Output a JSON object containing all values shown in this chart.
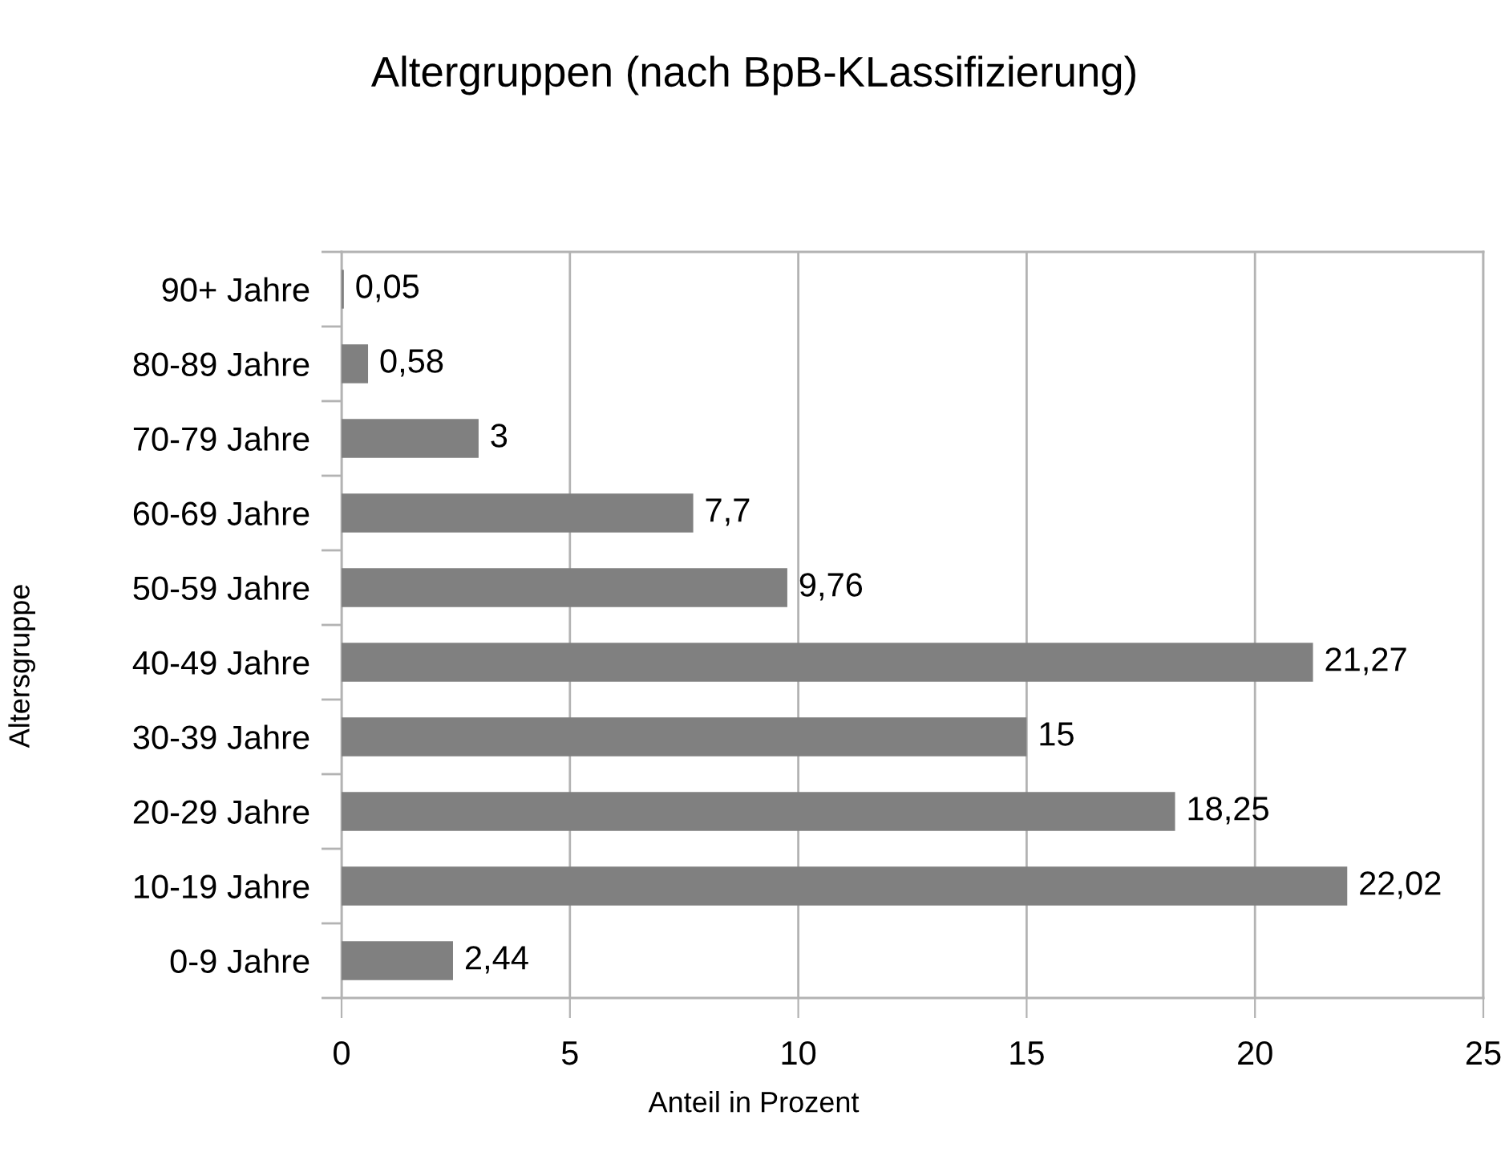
{
  "chart_data": {
    "type": "bar",
    "orientation": "horizontal",
    "title": "Altergruppen (nach BpB-KLassifizierung)",
    "xlabel": "Anteil in Prozent",
    "ylabel": "Altersgruppe",
    "categories": [
      "90+ Jahre",
      "80-89 Jahre",
      "70-79 Jahre",
      "60-69 Jahre",
      "50-59 Jahre",
      "40-49 Jahre",
      "30-39 Jahre",
      "20-29 Jahre",
      "10-19 Jahre",
      "0-9 Jahre"
    ],
    "values": [
      0.05,
      0.58,
      3,
      7.7,
      9.76,
      21.27,
      15,
      18.25,
      22.02,
      2.44
    ],
    "value_labels": [
      "0,05",
      "0,58",
      "3",
      "7,7",
      "9,76",
      "21,27",
      "15",
      "18,25",
      "22,02",
      "2,44"
    ],
    "color": "#808080",
    "xlim": [
      0,
      25
    ],
    "xticks": [
      0,
      5,
      10,
      15,
      20,
      25
    ],
    "grid": "x"
  }
}
